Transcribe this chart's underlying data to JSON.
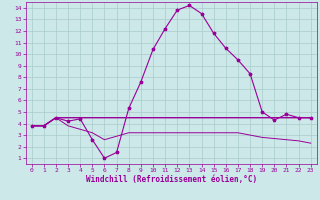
{
  "background_color": "#cce8e8",
  "grid_color": "#aacccc",
  "line_color": "#990099",
  "marker": "*",
  "xlabel": "Windchill (Refroidissement éolien,°C)",
  "xlim": [
    -0.5,
    23.5
  ],
  "ylim": [
    0.5,
    14.5
  ],
  "xticks": [
    0,
    1,
    2,
    3,
    4,
    5,
    6,
    7,
    8,
    9,
    10,
    11,
    12,
    13,
    14,
    15,
    16,
    17,
    18,
    19,
    20,
    21,
    22,
    23
  ],
  "yticks": [
    1,
    2,
    3,
    4,
    5,
    6,
    7,
    8,
    9,
    10,
    11,
    12,
    13,
    14
  ],
  "line1_x": [
    0,
    1,
    2,
    3,
    4,
    5,
    6,
    7,
    8,
    9,
    10,
    11,
    12,
    13,
    14,
    15,
    16,
    17,
    18,
    19,
    20,
    21,
    22,
    23
  ],
  "line1_y": [
    3.8,
    3.8,
    4.5,
    4.2,
    4.4,
    2.6,
    1.0,
    1.5,
    5.3,
    7.6,
    10.4,
    12.2,
    13.8,
    14.2,
    13.5,
    11.8,
    10.5,
    9.5,
    8.3,
    5.0,
    4.3,
    4.8,
    4.5,
    4.5
  ],
  "line2_x": [
    0,
    1,
    2,
    3,
    4,
    5,
    6,
    7,
    8,
    9,
    10,
    11,
    12,
    13,
    14,
    15,
    16,
    17,
    18,
    19,
    20,
    21,
    22,
    23
  ],
  "line2_y": [
    3.8,
    3.8,
    4.5,
    4.5,
    4.5,
    4.5,
    4.5,
    4.5,
    4.5,
    4.5,
    4.5,
    4.5,
    4.5,
    4.5,
    4.5,
    4.5,
    4.5,
    4.5,
    4.5,
    4.5,
    4.5,
    4.5,
    4.5,
    4.5
  ],
  "line3_x": [
    0,
    1,
    2,
    3,
    4,
    5,
    6,
    7,
    8,
    9,
    10,
    11,
    12,
    13,
    14,
    15,
    16,
    17,
    18,
    19,
    20,
    21,
    22,
    23
  ],
  "line3_y": [
    3.8,
    3.8,
    4.5,
    3.8,
    3.5,
    3.2,
    2.6,
    2.9,
    3.2,
    3.2,
    3.2,
    3.2,
    3.2,
    3.2,
    3.2,
    3.2,
    3.2,
    3.2,
    3.0,
    2.8,
    2.7,
    2.6,
    2.5,
    2.3
  ]
}
